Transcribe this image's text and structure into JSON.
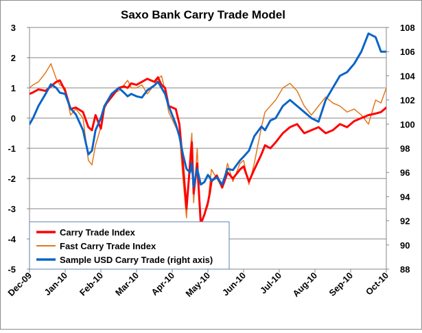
{
  "chart_data": {
    "type": "line",
    "title": "Saxo Bank Carry Trade Model",
    "left_axis": {
      "ylim": [
        -5,
        3
      ],
      "ticks": [
        -5,
        -4,
        -3,
        -2,
        -1,
        0,
        1,
        2,
        3
      ]
    },
    "right_axis": {
      "ylim": [
        88,
        108
      ],
      "ticks": [
        88,
        90,
        92,
        94,
        96,
        98,
        100,
        102,
        104,
        106,
        108
      ]
    },
    "x_range": [
      0,
      10
    ],
    "categories": [
      "Dec-09",
      "Jan-10",
      "Feb-10",
      "Mar-10",
      "Apr-10",
      "May-10",
      "Jun-10",
      "Jul-10",
      "Aug-10",
      "Sep-10",
      "Oct-10"
    ],
    "grid": "horizontal",
    "legend_position": "bottom-left",
    "series": [
      {
        "name": "Carry Trade Index",
        "axis": "left",
        "color": "#ff0000",
        "x": [
          0,
          0.1,
          0.25,
          0.45,
          0.6,
          0.75,
          0.85,
          1.0,
          1.15,
          1.3,
          1.5,
          1.65,
          1.75,
          1.85,
          2.0,
          2.1,
          2.3,
          2.5,
          2.65,
          2.75,
          2.85,
          3.0,
          3.15,
          3.3,
          3.5,
          3.6,
          3.7,
          3.8,
          3.9,
          4.1,
          4.2,
          4.3,
          4.4,
          4.5,
          4.55,
          4.6,
          4.7,
          4.8,
          4.9,
          5.0,
          5.05,
          5.1,
          5.25,
          5.4,
          5.55,
          5.7,
          5.9,
          6.0,
          6.15,
          6.3,
          6.5,
          6.6,
          6.75,
          6.9,
          7.1,
          7.3,
          7.5,
          7.7,
          7.9,
          8.1,
          8.3,
          8.5,
          8.7,
          8.9,
          9.1,
          9.3,
          9.5,
          9.7,
          9.85,
          10.0
        ],
        "values": [
          0.8,
          0.85,
          0.95,
          0.9,
          1.05,
          1.2,
          1.25,
          0.9,
          0.3,
          0.35,
          0.2,
          -0.3,
          -0.4,
          0.1,
          -0.35,
          0.4,
          0.7,
          1.0,
          1.05,
          1.0,
          1.15,
          1.1,
          1.2,
          1.3,
          1.2,
          1.35,
          1.1,
          1.0,
          0.4,
          0.3,
          -0.2,
          -1.5,
          -3.0,
          -1.5,
          -0.8,
          -2.5,
          -1.5,
          -3.5,
          -3.2,
          -2.8,
          -2.5,
          -2.1,
          -1.9,
          -2.3,
          -1.8,
          -2.0,
          -1.7,
          -1.6,
          -2.1,
          -1.7,
          -1.2,
          -0.9,
          -1.0,
          -0.8,
          -0.5,
          -0.3,
          -0.2,
          -0.5,
          -0.4,
          -0.3,
          -0.5,
          -0.4,
          -0.2,
          -0.3,
          -0.1,
          0.0,
          0.1,
          0.15,
          0.2,
          0.35
        ]
      },
      {
        "name": "Fast Carry Trade Index",
        "axis": "left",
        "color": "#e2761b",
        "x": [
          0,
          0.1,
          0.25,
          0.45,
          0.6,
          0.75,
          0.85,
          1.0,
          1.15,
          1.3,
          1.5,
          1.65,
          1.75,
          1.85,
          2.0,
          2.1,
          2.3,
          2.5,
          2.65,
          2.75,
          2.85,
          3.0,
          3.15,
          3.3,
          3.5,
          3.6,
          3.7,
          3.8,
          3.9,
          4.1,
          4.2,
          4.3,
          4.4,
          4.5,
          4.55,
          4.6,
          4.7,
          4.8,
          4.9,
          5.0,
          5.05,
          5.1,
          5.25,
          5.4,
          5.55,
          5.7,
          5.9,
          6.0,
          6.15,
          6.3,
          6.5,
          6.6,
          6.75,
          6.9,
          7.1,
          7.3,
          7.5,
          7.7,
          7.9,
          8.1,
          8.3,
          8.5,
          8.7,
          8.9,
          9.1,
          9.3,
          9.5,
          9.7,
          9.85,
          10.0
        ],
        "values": [
          1.0,
          1.1,
          1.2,
          1.5,
          1.8,
          1.3,
          1.1,
          1.0,
          0.1,
          0.3,
          0.0,
          -1.4,
          -1.55,
          -0.9,
          -0.3,
          0.3,
          0.8,
          0.9,
          1.1,
          1.25,
          1.0,
          1.0,
          1.1,
          0.8,
          1.1,
          1.3,
          1.4,
          0.9,
          0.2,
          -0.3,
          -0.5,
          -2.0,
          -3.3,
          -1.2,
          -0.5,
          -2.8,
          -1.0,
          -3.6,
          -3.2,
          -2.9,
          -2.2,
          -1.7,
          -2.0,
          -2.3,
          -1.5,
          -2.1,
          -1.5,
          -1.4,
          -2.2,
          -1.5,
          -0.3,
          0.2,
          0.4,
          0.6,
          1.0,
          1.15,
          0.9,
          0.4,
          0.1,
          0.4,
          0.7,
          0.5,
          0.4,
          0.2,
          0.3,
          0.1,
          -0.2,
          0.6,
          0.5,
          1.0
        ]
      },
      {
        "name": "Sample USD Carry Trade (right axis)",
        "axis": "right",
        "color": "#0a64c8",
        "x": [
          0,
          0.1,
          0.25,
          0.45,
          0.6,
          0.75,
          0.85,
          1.0,
          1.15,
          1.3,
          1.5,
          1.65,
          1.75,
          1.85,
          2.0,
          2.1,
          2.3,
          2.5,
          2.65,
          2.75,
          2.85,
          3.0,
          3.15,
          3.3,
          3.5,
          3.6,
          3.7,
          3.8,
          3.9,
          4.1,
          4.2,
          4.3,
          4.4,
          4.5,
          4.55,
          4.6,
          4.7,
          4.8,
          4.9,
          5.0,
          5.05,
          5.1,
          5.25,
          5.4,
          5.55,
          5.7,
          5.9,
          6.0,
          6.15,
          6.3,
          6.5,
          6.6,
          6.75,
          6.9,
          7.1,
          7.3,
          7.5,
          7.7,
          7.9,
          8.1,
          8.3,
          8.5,
          8.7,
          8.9,
          9.1,
          9.3,
          9.5,
          9.7,
          9.85,
          10.0
        ],
        "values": [
          100.0,
          100.5,
          101.5,
          102.5,
          103.3,
          103.0,
          102.6,
          102.5,
          101.3,
          100.8,
          99.5,
          97.5,
          97.8,
          99.5,
          100.5,
          101.5,
          102.5,
          103.0,
          102.6,
          102.3,
          102.5,
          102.3,
          102.2,
          102.8,
          103.2,
          103.5,
          103.0,
          102.5,
          101.5,
          100.0,
          99.0,
          97.5,
          96.3,
          96.0,
          96.8,
          94.8,
          96.3,
          95.0,
          95.2,
          95.8,
          95.6,
          95.3,
          95.6,
          95.0,
          96.3,
          96.2,
          97.0,
          97.3,
          97.8,
          99.0,
          99.8,
          99.5,
          100.3,
          100.5,
          101.5,
          102.0,
          101.5,
          101.0,
          100.5,
          100.2,
          102.0,
          103.0,
          104.0,
          104.3,
          105.0,
          106.0,
          107.5,
          107.2,
          106.0,
          106.0
        ]
      }
    ]
  }
}
